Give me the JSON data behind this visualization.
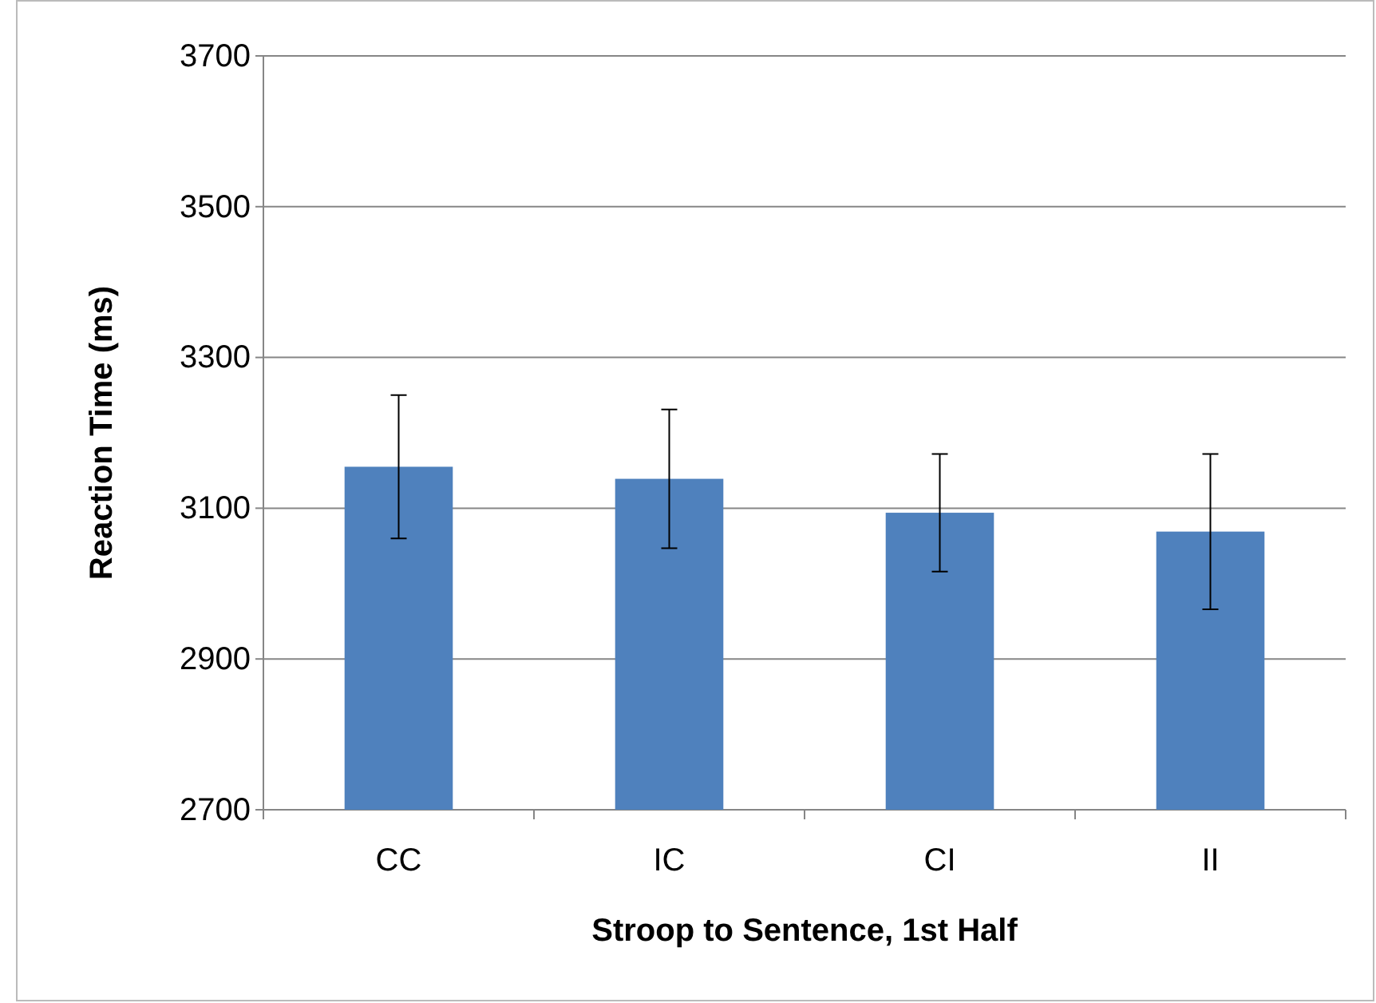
{
  "chart_data": {
    "type": "bar",
    "xlabel": "Stroop to Sentence, 1st Half",
    "ylabel": "Reaction Time (ms)",
    "categories": [
      "CC",
      "IC",
      "CI",
      "II"
    ],
    "series": [
      {
        "color": "#4f81bd",
        "values": [
          3155,
          3139,
          3094,
          3069
        ],
        "errors": [
          95,
          92,
          78,
          103
        ]
      }
    ],
    "ylim": [
      2700,
      3700
    ],
    "yticks": [
      2700,
      2900,
      3100,
      3300,
      3500,
      3700
    ],
    "grid": "y"
  }
}
